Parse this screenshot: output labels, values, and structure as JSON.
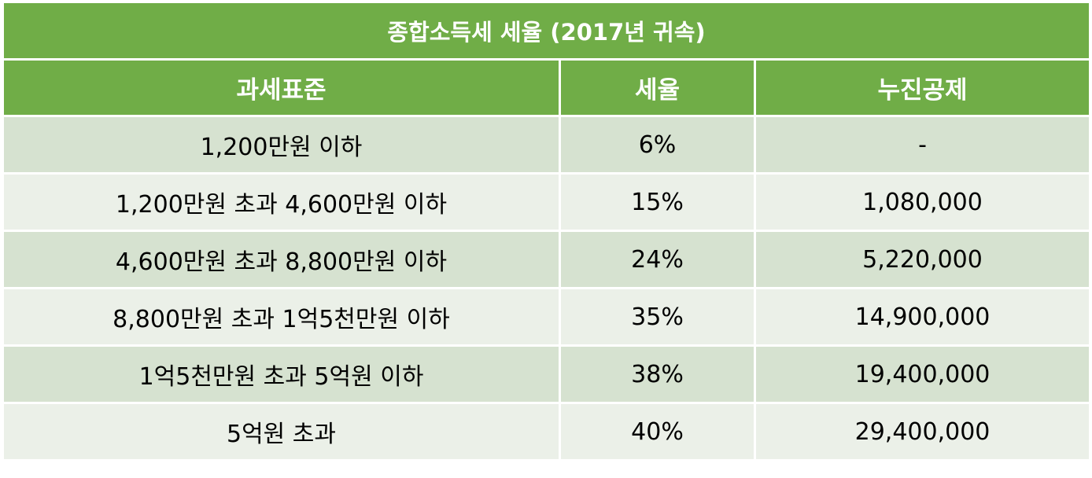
{
  "title": "종합소득세 세율 (2017년 귀속)",
  "headers": {
    "bracket": "과세표준",
    "rate": "세율",
    "deduction": "누진공제"
  },
  "rows": [
    {
      "bracket": "1,200만원 이하",
      "rate": "6%",
      "deduction": "-"
    },
    {
      "bracket": "1,200만원 초과 4,600만원 이하",
      "rate": "15%",
      "deduction": "1,080,000"
    },
    {
      "bracket": "4,600만원 초과 8,800만원 이하",
      "rate": "24%",
      "deduction": "5,220,000"
    },
    {
      "bracket": "8,800만원 초과 1억5천만원 이하",
      "rate": "35%",
      "deduction": "14,900,000"
    },
    {
      "bracket": "1억5천만원 초과 5억원 이하",
      "rate": "38%",
      "deduction": "19,400,000"
    },
    {
      "bracket": "5억원 초과",
      "rate": "40%",
      "deduction": "29,400,000"
    }
  ],
  "colors": {
    "header_bg": "#70ad47",
    "row_dark": "#d6e2d0",
    "row_light": "#ebf0e8",
    "header_text": "#ffffff"
  }
}
